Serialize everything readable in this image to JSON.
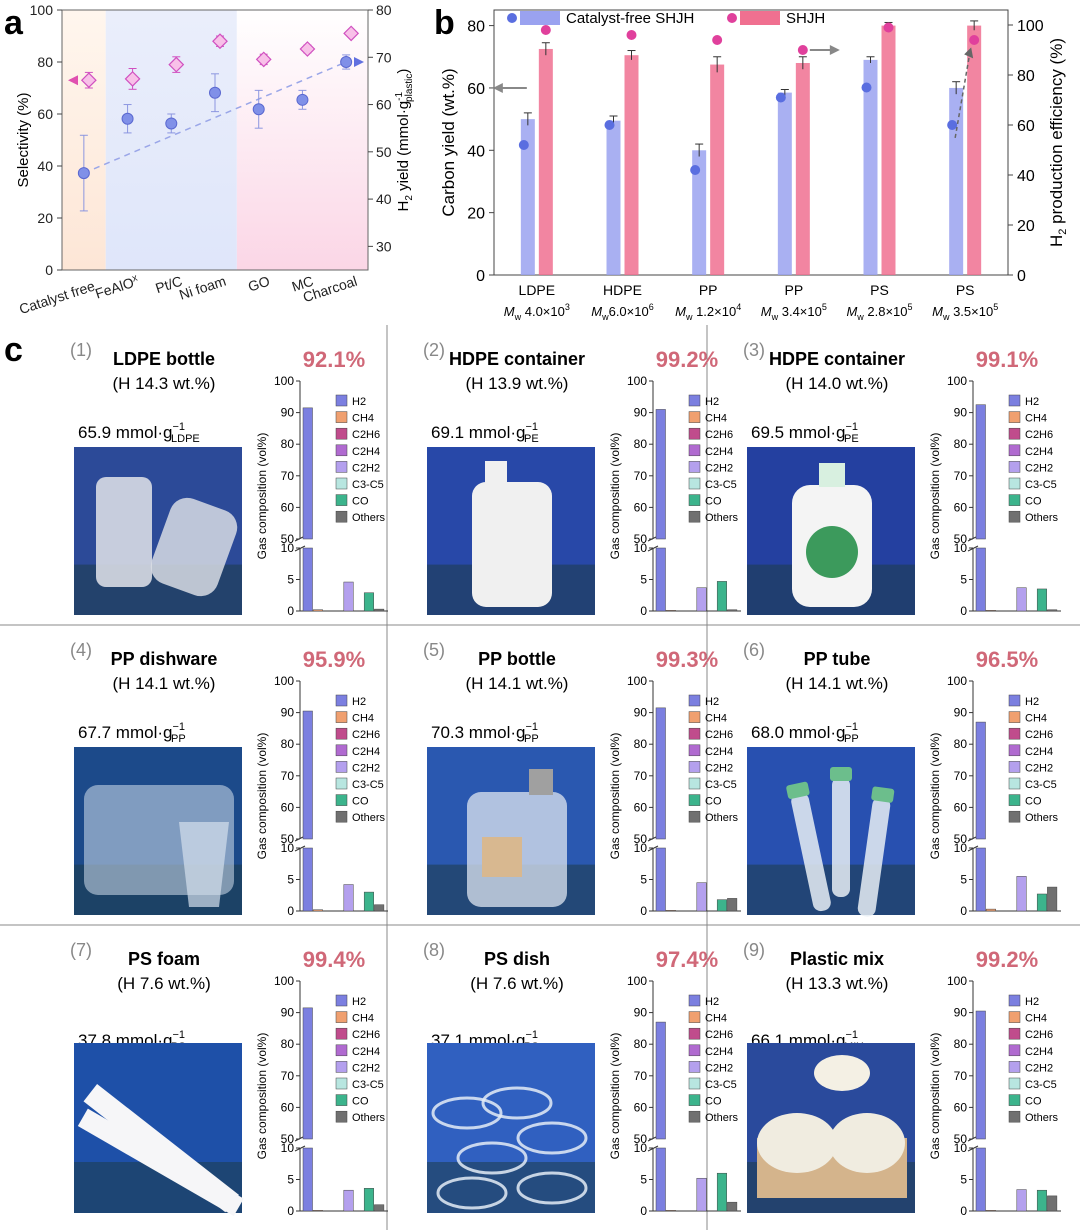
{
  "panel_a": {
    "letter": "a",
    "ylabel_left": "Selectivity (%)",
    "ylabel_right_main": "H",
    "ylabel_right_sub": "2",
    "ylabel_right_rest": " yield (mmol·g",
    "ylabel_right_sup": "-1",
    "ylabel_right_subscript": "plastic",
    "ylabel_right_end": ")"
  },
  "panel_b": {
    "letter": "b",
    "ylabel_left": "Carbon yield (wt.%)",
    "ylabel_right_main": "H",
    "ylabel_right_sub": "2",
    "ylabel_right_rest": " production efficiency (%)",
    "mw_prefix": "M",
    "mw_sub": "w"
  },
  "panel_c": {
    "letter": "c",
    "axis_ylabel": "Gas composition (vol%)",
    "legend": [
      "H2",
      "CH4",
      "C2H6",
      "C2H4",
      "C2H2",
      "C3-C5",
      "CO",
      "Others"
    ],
    "legend_colors": [
      "#7b7fe0",
      "#f0a070",
      "#c04c8c",
      "#b06ad0",
      "#b4a0ee",
      "#b8e6e0",
      "#3cb48c",
      "#707070"
    ],
    "items": [
      {
        "num": "(1)",
        "title": "LDPE bottle",
        "hcontent": "(H 14.3 wt.%)",
        "pct": "92.1%",
        "yield": "65.9 mmol·g",
        "yield_sub": "LDPE",
        "photo": "bottle"
      },
      {
        "num": "(2)",
        "title": "HDPE container",
        "hcontent": "(H 13.9 wt.%)",
        "pct": "99.2%",
        "yield": "69.1 mmol·g",
        "yield_sub": "PE",
        "photo": "jug"
      },
      {
        "num": "(3)",
        "title": "HDPE container",
        "hcontent": "(H 14.0 wt.%)",
        "pct": "99.1%",
        "yield": "69.5 mmol·g",
        "yield_sub": "PE",
        "photo": "detergent"
      },
      {
        "num": "(4)",
        "title": "PP dishware",
        "hcontent": "(H 14.1 wt.%)",
        "pct": "95.9%",
        "yield": "67.7 mmol·g",
        "yield_sub": "PP",
        "photo": "dishware"
      },
      {
        "num": "(5)",
        "title": "PP bottle",
        "hcontent": "(H 14.1 wt.%)",
        "pct": "99.3%",
        "yield": "70.3 mmol·g",
        "yield_sub": "PP",
        "photo": "flask"
      },
      {
        "num": "(6)",
        "title": "PP tube",
        "hcontent": "(H 14.1 wt.%)",
        "pct": "96.5%",
        "yield": "68.0 mmol·g",
        "yield_sub": "PP",
        "photo": "tubes"
      },
      {
        "num": "(7)",
        "title": "PS foam",
        "hcontent": "(H 7.6 wt.%)",
        "pct": "99.4%",
        "yield": "37.8 mmol·g",
        "yield_sub": "PS",
        "photo": "foam"
      },
      {
        "num": "(8)",
        "title": "PS dish",
        "hcontent": "(H 7.6 wt.%)",
        "pct": "97.4%",
        "yield": "37.1 mmol·g",
        "yield_sub": "PS",
        "photo": "dishes"
      },
      {
        "num": "(9)",
        "title": "Plastic mix",
        "hcontent": "(H 13.3 wt.%)",
        "pct": "99.2%",
        "yield": "66.1 mmol·g",
        "yield_sub": "MIX.",
        "photo": "mix"
      }
    ]
  },
  "chart_data": [
    {
      "type": "scatter",
      "panel": "a",
      "categories": [
        "Catalyst free",
        "FeAlO",
        "Pt/C",
        "Ni foam",
        "GO",
        "MC",
        "Charcoal"
      ],
      "xtick_labels": [
        "Catalyst free",
        "FeAlO",
        "Pt/C",
        "Ni foam",
        "GO",
        "MC",
        "Charcoal"
      ],
      "xtick_superscript": [
        "",
        "x",
        "",
        "",
        "",
        "",
        ""
      ],
      "ylabel": "Selectivity (%)",
      "y2label": "H2 yield (mmol·g-1plastic)",
      "ylim": [
        0,
        100
      ],
      "y2lim": [
        25,
        80
      ],
      "yticks": [
        0,
        20,
        40,
        60,
        80,
        100
      ],
      "y2ticks": [
        30,
        40,
        50,
        60,
        70,
        80
      ],
      "series": [
        {
          "name": "Selectivity",
          "axis": "left",
          "color": "#d050c0",
          "values": [
            73,
            73.5,
            79,
            88,
            81,
            85,
            91
          ],
          "errors": [
            3,
            4,
            3,
            2,
            2,
            1.5,
            1
          ]
        },
        {
          "name": "H2 yield",
          "axis": "right",
          "color": "#6f7ee8",
          "values": [
            45.5,
            57,
            56,
            62.5,
            59,
            61,
            69
          ],
          "errors": [
            8,
            3,
            2,
            4,
            4,
            2,
            1.5
          ]
        }
      ]
    },
    {
      "type": "bar",
      "panel": "b",
      "categories": [
        "LDPE",
        "HDPE",
        "PP",
        "PP",
        "PS",
        "PS"
      ],
      "mw_values": [
        " 4.0×10",
        "6.0×10",
        " 1.2×10",
        " 3.4×10",
        " 2.8×10",
        " 3.5×10"
      ],
      "mw_exponents": [
        "3",
        "6",
        "4",
        "5",
        "5",
        "5"
      ],
      "ylabel": "Carbon yield (wt.%)",
      "y2label": "H2 production efficiency (%)",
      "ylim": [
        0,
        85
      ],
      "y2lim": [
        0,
        106
      ],
      "yticks": [
        0,
        20,
        40,
        60,
        80
      ],
      "y2ticks": [
        0,
        20,
        40,
        60,
        80,
        100
      ],
      "series": [
        {
          "name": "Catalyst-free SHJH",
          "color": "#9aa2f0",
          "values": [
            50,
            49.5,
            40,
            58.5,
            69,
            60
          ],
          "errors": [
            2,
            1.5,
            2,
            1,
            1,
            2
          ],
          "efficiency": [
            52,
            60,
            42,
            71,
            75,
            60
          ]
        },
        {
          "name": "SHJH",
          "color": "#f07090",
          "values": [
            72.5,
            70.5,
            67.5,
            68,
            80,
            80
          ],
          "errors": [
            2,
            1.5,
            2.5,
            2,
            1,
            1.5
          ],
          "efficiency": [
            98,
            96,
            94,
            90,
            99,
            94
          ]
        }
      ]
    },
    {
      "type": "bar",
      "panel": "c",
      "ylabel": "Gas composition (vol%)",
      "yticks": [
        0,
        5,
        10,
        50,
        60,
        70,
        80,
        90,
        100
      ],
      "categories": [
        "H2",
        "CH4",
        "C2H6",
        "C2H4",
        "C2H2",
        "C3-C5",
        "CO",
        "Others"
      ],
      "series": [
        {
          "name": "(1)",
          "values": [
            91.5,
            0.2,
            0,
            0,
            4.6,
            0,
            2.9,
            0.3
          ]
        },
        {
          "name": "(2)",
          "values": [
            91,
            0.1,
            0,
            0,
            3.7,
            0,
            4.7,
            0.2
          ]
        },
        {
          "name": "(3)",
          "values": [
            92.5,
            0.1,
            0,
            0,
            3.7,
            0,
            3.5,
            0.2
          ]
        },
        {
          "name": "(4)",
          "values": [
            90.5,
            0.2,
            0,
            0,
            4.2,
            0,
            3.0,
            1.0
          ]
        },
        {
          "name": "(5)",
          "values": [
            91.5,
            0.1,
            0,
            0,
            4.5,
            0,
            1.8,
            2.0
          ]
        },
        {
          "name": "(6)",
          "values": [
            87,
            0.3,
            0,
            0,
            5.5,
            0,
            2.7,
            3.8
          ]
        },
        {
          "name": "(7)",
          "values": [
            91.5,
            0.1,
            0,
            0,
            3.3,
            0,
            3.6,
            1.0
          ]
        },
        {
          "name": "(8)",
          "values": [
            87,
            0.1,
            0,
            0,
            5.2,
            0,
            6.0,
            1.4
          ]
        },
        {
          "name": "(9)",
          "values": [
            90.5,
            0.1,
            0,
            0,
            3.4,
            0,
            3.3,
            2.4
          ]
        }
      ]
    }
  ]
}
